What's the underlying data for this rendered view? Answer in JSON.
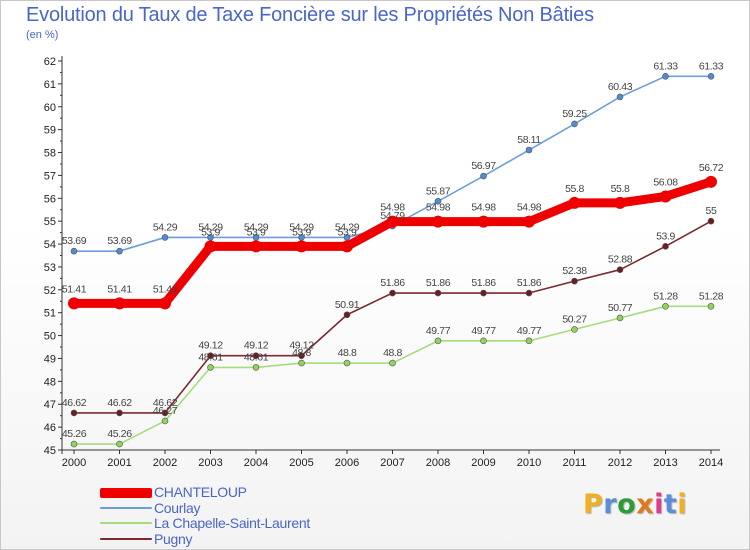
{
  "header": {
    "title": "Evolution du Taux de Taxe Foncière sur les Propriétés Non Bâties",
    "unit": "(en %)"
  },
  "brand": {
    "text": "Proxiti",
    "colors": [
      "#f0b020",
      "#5a8ed8",
      "#2e9a3a",
      "#e07a20",
      "#e03a8a",
      "#5a8ed8",
      "#f0b020"
    ]
  },
  "chart_data": {
    "type": "line",
    "title": "Evolution du Taux de Taxe Foncière sur les Propriétés Non Bâties",
    "ylabel": "(en %)",
    "xlabel": "",
    "x": [
      "2000",
      "2001",
      "2002",
      "2003",
      "2004",
      "2005",
      "2006",
      "2007",
      "2008",
      "2009",
      "2010",
      "2011",
      "2012",
      "2013",
      "2014"
    ],
    "ylim": [
      45,
      62
    ],
    "yticks": [
      45,
      46,
      47,
      48,
      49,
      50,
      51,
      52,
      53,
      54,
      55,
      56,
      57,
      58,
      59,
      60,
      61,
      62
    ],
    "grid": false,
    "legend_position": "bottom-left",
    "series": [
      {
        "name": "Courlay",
        "color": "#6e9ed8",
        "marker": "#4f8cd3",
        "values": [
          53.69,
          53.69,
          54.29,
          54.29,
          54.29,
          54.29,
          54.29,
          54.79,
          55.87,
          56.97,
          58.11,
          59.25,
          60.43,
          61.33,
          61.33
        ],
        "labels": [
          "53.69",
          "53.69",
          "54.29",
          "54.29",
          "54.29",
          "54.29",
          "54.29",
          "54.79",
          "55.87",
          "56.97",
          "58.11",
          "59.25",
          "60.43",
          "61.33",
          "61.33"
        ]
      },
      {
        "name": "La Chapelle-Saint-Laurent",
        "color": "#a6dc7c",
        "marker": "#8fd35a",
        "values": [
          45.26,
          45.26,
          46.27,
          48.61,
          48.61,
          48.8,
          48.8,
          48.8,
          49.77,
          49.77,
          49.77,
          50.27,
          50.77,
          51.28,
          51.28
        ],
        "labels": [
          "45.26",
          "45.26",
          "46.27",
          "48.61",
          "48.61",
          "48.8",
          "48.8",
          "48.8",
          "49.77",
          "49.77",
          "49.77",
          "50.27",
          "50.77",
          "51.28",
          "51.28"
        ]
      },
      {
        "name": "Pugny",
        "color": "#7a2a30",
        "marker": "#6a1e24",
        "values": [
          46.62,
          46.62,
          46.62,
          49.12,
          49.12,
          49.12,
          50.91,
          51.86,
          51.86,
          51.86,
          51.86,
          52.38,
          52.88,
          53.9,
          55
        ],
        "labels": [
          "46.62",
          "46.62",
          "46.62",
          "49.12",
          "49.12",
          "49.12",
          "50.91",
          "51.86",
          "51.86",
          "51.86",
          "51.86",
          "52.38",
          "52.88",
          "53.9",
          "55"
        ]
      },
      {
        "name": "CHANTELOUP",
        "color": "#ee0000",
        "marker": "#ee0000",
        "values": [
          51.41,
          51.41,
          51.41,
          53.9,
          53.9,
          53.9,
          53.9,
          54.98,
          54.98,
          54.98,
          54.98,
          55.8,
          55.8,
          56.08,
          56.72
        ],
        "labels": [
          "51.41",
          "51.41",
          "51.41",
          "53.9",
          "53.9",
          "53.9",
          "53.9",
          "54.98",
          "54.98",
          "54.98",
          "54.98",
          "55.8",
          "55.8",
          "56.08",
          "56.72"
        ]
      }
    ],
    "legend": [
      {
        "name": "CHANTELOUP",
        "color": "#ee0000"
      },
      {
        "name": "Courlay",
        "color": "#6e9ed8"
      },
      {
        "name": "La Chapelle-Saint-Laurent",
        "color": "#a6dc7c"
      },
      {
        "name": "Pugny",
        "color": "#7a2a30"
      }
    ]
  }
}
